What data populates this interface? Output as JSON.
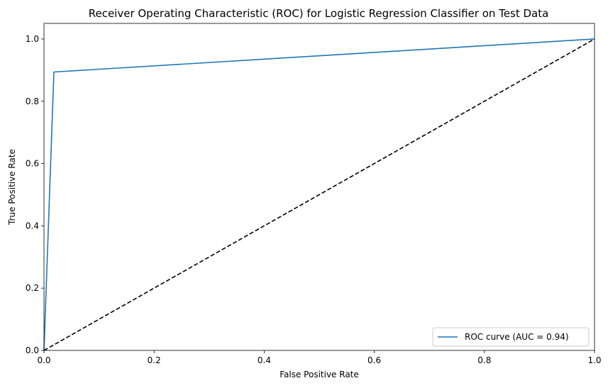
{
  "chart_data": {
    "type": "line",
    "title": "Receiver Operating Characteristic (ROC) for Logistic Regression Classifier on Test Data",
    "xlabel": "False Positive Rate",
    "ylabel": "True Positive Rate",
    "xlim": [
      0.0,
      1.0
    ],
    "ylim": [
      0.0,
      1.05
    ],
    "xticks": [
      "0.0",
      "0.2",
      "0.4",
      "0.6",
      "0.8",
      "1.0"
    ],
    "yticks": [
      "0.0",
      "0.2",
      "0.4",
      "0.6",
      "0.8",
      "1.0"
    ],
    "grid": false,
    "legend_position": "bottom-right",
    "series": [
      {
        "name": "ROC curve (AUC = 0.94)",
        "color": "#1f77b4",
        "style": "solid",
        "x": [
          0.0,
          0.018,
          1.0
        ],
        "y": [
          0.0,
          0.894,
          1.0
        ]
      },
      {
        "color": "#000000",
        "style": "dashed",
        "x": [
          0.0,
          1.0
        ],
        "y": [
          0.0,
          1.0
        ]
      }
    ]
  }
}
